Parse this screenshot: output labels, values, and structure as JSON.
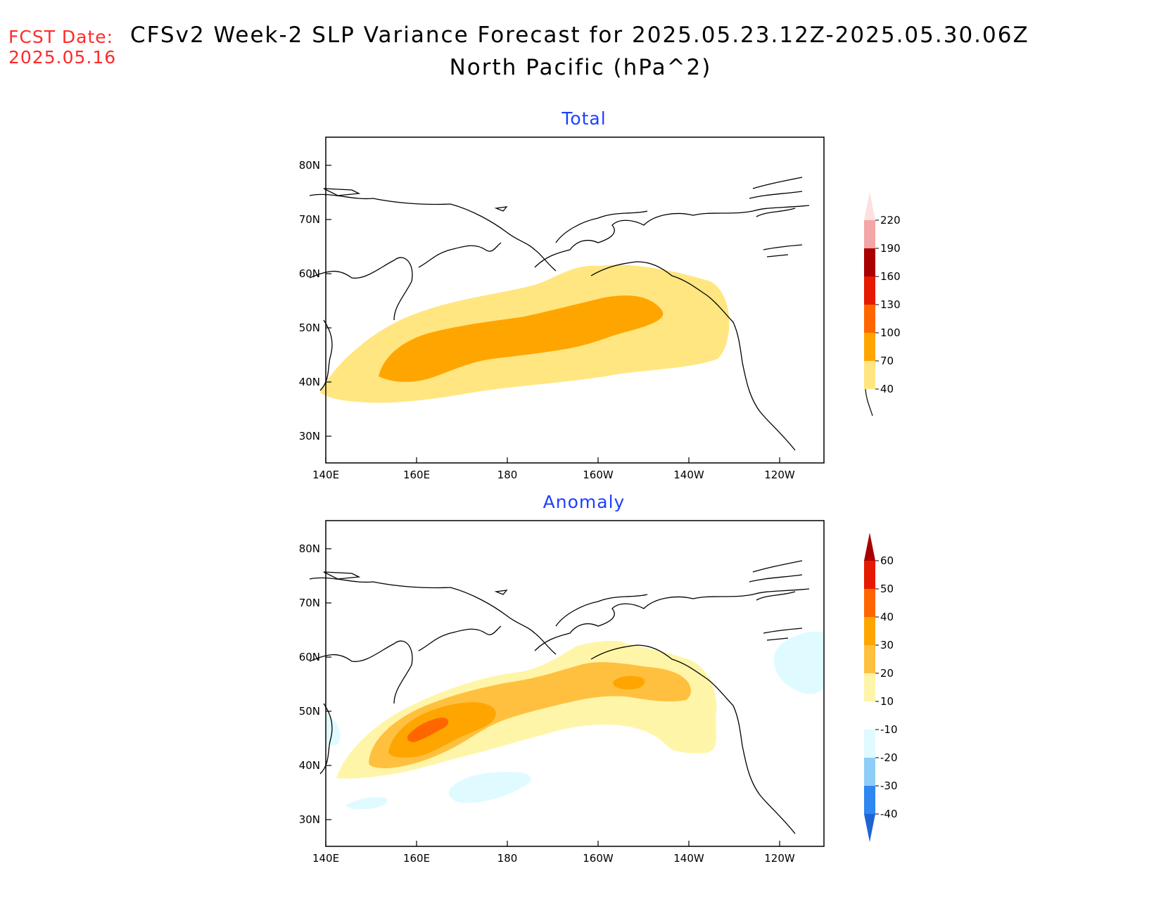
{
  "header": {
    "fcst_label": "FCST Date:",
    "fcst_date": "2025.05.16",
    "title_line1": "CFSv2 Week-2 SLP Variance Forecast for 2025.05.23.12Z-2025.05.30.06Z",
    "title_line2": "North Pacific (hPa^2)"
  },
  "map_axes": {
    "lat_labels": [
      "80N",
      "70N",
      "60N",
      "50N",
      "40N",
      "30N"
    ],
    "lon_labels": [
      "140E",
      "160E",
      "180",
      "160W",
      "140W",
      "120W"
    ],
    "coastline_color": "#000000"
  },
  "panels": [
    {
      "id": "total",
      "title": "Total",
      "colorbar": {
        "labels": [
          "40",
          "70",
          "100",
          "130",
          "160",
          "190",
          "220"
        ],
        "colors": [
          "#ffe680",
          "#ffa500",
          "#ff6600",
          "#e61a00",
          "#a80000",
          "#f4a5a5",
          "#fde0e0"
        ]
      }
    },
    {
      "id": "anomaly",
      "title": "Anomaly",
      "colorbar": {
        "labels": [
          "-40",
          "-30",
          "-20",
          "-10",
          "10",
          "20",
          "30",
          "40",
          "50",
          "60"
        ],
        "colors": [
          "#1e64d6",
          "#2f87f0",
          "#8fcdf8",
          "#e0fbff",
          "#ffffff",
          "#fff5a8",
          "#ffc040",
          "#ffa500",
          "#ff6600",
          "#e61a00",
          "#a80000"
        ]
      }
    }
  ]
}
